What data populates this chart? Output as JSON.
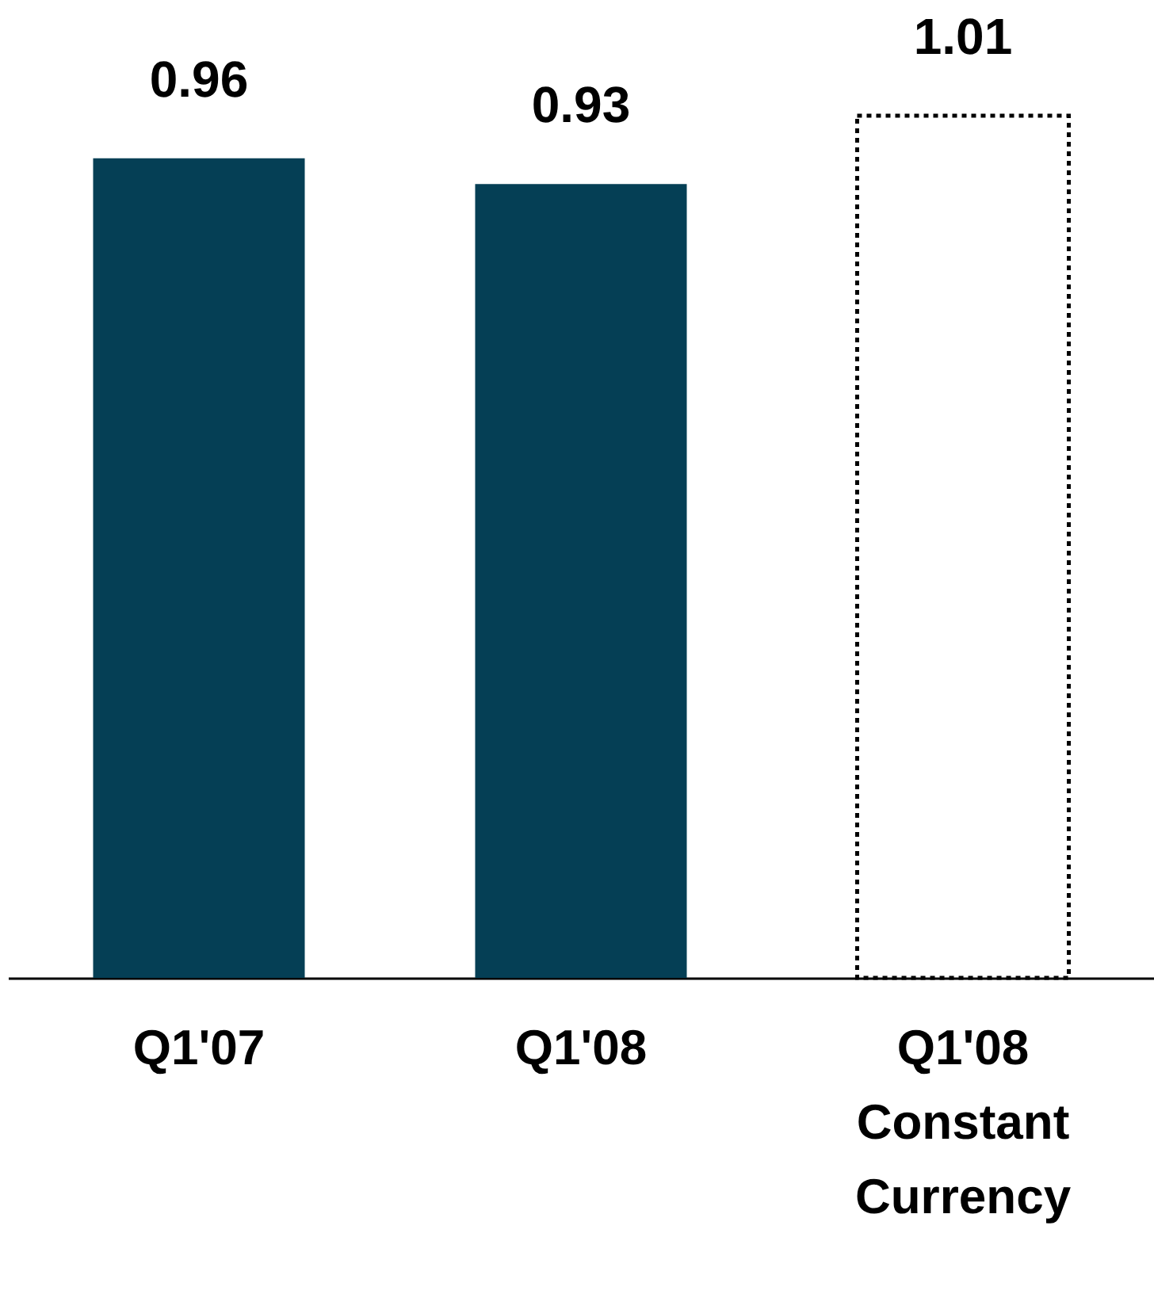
{
  "chart_data": {
    "type": "bar",
    "categories": [
      "Q1'07",
      "Q1'08",
      "Q1'08 Constant Currency"
    ],
    "data_labels": true,
    "series": [
      {
        "color": "#053f55",
        "values": [
          0.96,
          0.93,
          null
        ]
      },
      {
        "color": "#000000",
        "line_style": "dotted",
        "values": [
          null,
          null,
          1.01
        ]
      }
    ]
  }
}
